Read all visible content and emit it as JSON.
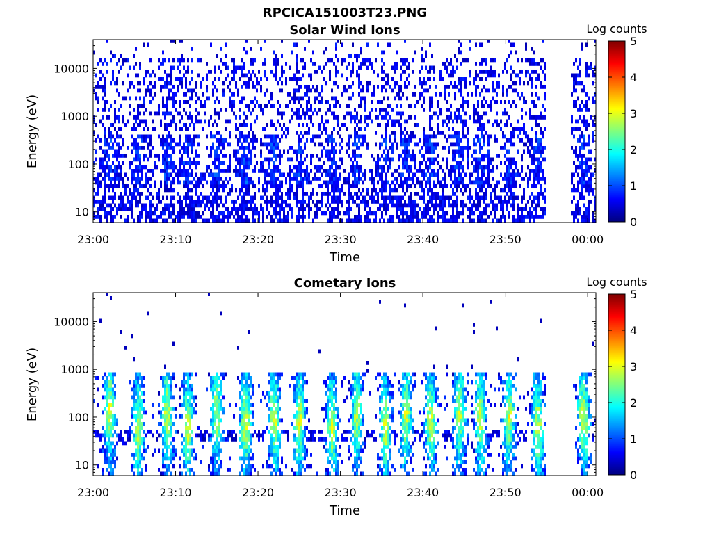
{
  "figure": {
    "title": "RPCICA151003T23.PNG"
  },
  "colormap": {
    "name": "jet",
    "stops": [
      "#00007f",
      "#0000ff",
      "#007fff",
      "#00ffff",
      "#7fff7f",
      "#ffff00",
      "#ff7f00",
      "#ff0000",
      "#7f0000"
    ]
  },
  "chart_data": [
    {
      "type": "heatmap",
      "title": "Solar Wind Ions",
      "xlabel": "Time",
      "ylabel": "Energy (eV)",
      "x_range": [
        "23:00",
        "00:01"
      ],
      "x_ticks": [
        "23:00",
        "23:10",
        "23:20",
        "23:30",
        "23:40",
        "23:50",
        "00:00"
      ],
      "y_scale": "log",
      "y_range": [
        6,
        40000
      ],
      "y_ticks": [
        "10",
        "100",
        "1000",
        "10000"
      ],
      "colorbar": {
        "label": "Log counts",
        "range": [
          0,
          5
        ],
        "ticks": [
          "0",
          "1",
          "2",
          "3",
          "4",
          "5"
        ]
      },
      "data_gap": [
        "23:55",
        "23:58"
      ],
      "bursts_min": [
        2,
        5.5,
        9,
        11.5,
        15,
        18.5,
        22,
        25,
        29,
        32,
        35.5,
        38,
        41,
        44.5,
        47,
        50.5,
        54,
        59.5
      ]
    },
    {
      "type": "heatmap",
      "title": "Cometary Ions",
      "xlabel": "Time",
      "ylabel": "Energy (eV)",
      "x_range": [
        "23:00",
        "00:01"
      ],
      "x_ticks": [
        "23:00",
        "23:10",
        "23:20",
        "23:30",
        "23:40",
        "23:50",
        "00:00"
      ],
      "y_scale": "log",
      "y_range": [
        6,
        40000
      ],
      "y_ticks": [
        "10",
        "100",
        "1000",
        "10000"
      ],
      "colorbar": {
        "label": "Log counts",
        "range": [
          0,
          5
        ],
        "ticks": [
          "0",
          "1",
          "2",
          "3",
          "4",
          "5"
        ]
      },
      "data_gap": [
        "23:55",
        "23:58"
      ],
      "bursts_min": [
        2,
        5.5,
        9,
        11.5,
        15,
        18.5,
        22,
        25,
        29,
        32,
        35.5,
        38,
        41,
        44.5,
        47,
        50.5,
        54,
        59.5
      ]
    }
  ]
}
